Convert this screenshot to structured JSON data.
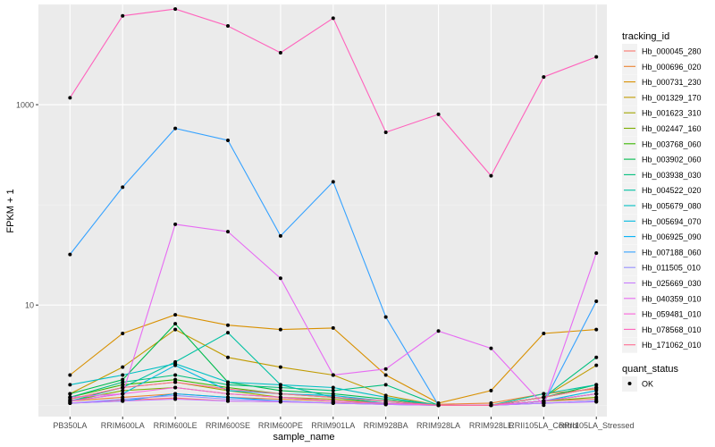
{
  "chart_data": {
    "type": "line",
    "title": "",
    "xlabel": "sample_name",
    "ylabel": "FPKM + 1",
    "y_scale": "log10",
    "ylim": [
      0.77,
      10000
    ],
    "y_ticks": [
      10,
      1000
    ],
    "y_tick_labels": [
      "10",
      "1000"
    ],
    "categories": [
      "PB350LA",
      "RRIM600LA",
      "RRIM600LE",
      "RRIM600SE",
      "RRIM600PE",
      "RRIM901LA",
      "RRIM928BA",
      "RRIM928LA",
      "RRIM928LE",
      "RRII105LA_Control",
      "RRII105LA_Stressed"
    ],
    "legend": {
      "title": "tracking_id",
      "position": "right",
      "entries": [
        "Hb_000045_280",
        "Hb_000696_020",
        "Hb_000731_230",
        "Hb_001329_170",
        "Hb_001623_310",
        "Hb_002447_160",
        "Hb_003768_060",
        "Hb_003902_060",
        "Hb_003938_030",
        "Hb_004522_020",
        "Hb_005679_080",
        "Hb_005694_070",
        "Hb_006925_090",
        "Hb_007188_060",
        "Hb_011505_010",
        "Hb_025669_030",
        "Hb_040359_010",
        "Hb_059481_010",
        "Hb_078568_010",
        "Hb_171062_010"
      ]
    },
    "point_legend": {
      "title": "quant_status",
      "entries": [
        "OK"
      ]
    },
    "series": [
      {
        "name": "Hb_000045_280",
        "color": "#F8766D",
        "values": [
          1.05,
          1.12,
          1.18,
          1.1,
          1.08,
          1.06,
          1.03,
          1.0,
          1.0,
          1.1,
          1.15
        ]
      },
      {
        "name": "Hb_000696_020",
        "color": "#EA8331",
        "values": [
          1.1,
          1.2,
          1.3,
          1.2,
          1.15,
          1.1,
          1.05,
          1.02,
          1.05,
          1.3,
          1.45
        ]
      },
      {
        "name": "Hb_000731_230",
        "color": "#D89000",
        "values": [
          2.0,
          5.2,
          8.0,
          6.3,
          5.7,
          5.9,
          2.0,
          1.05,
          1.4,
          5.2,
          5.7
        ]
      },
      {
        "name": "Hb_001329_170",
        "color": "#C09B00",
        "values": [
          1.3,
          2.4,
          5.7,
          3.0,
          2.4,
          2.0,
          1.25,
          1.0,
          1.0,
          1.2,
          2.5
        ]
      },
      {
        "name": "Hb_001623_310",
        "color": "#A3A500",
        "values": [
          1.15,
          1.5,
          1.7,
          1.4,
          1.2,
          1.15,
          1.05,
          1.0,
          1.0,
          1.1,
          1.3
        ]
      },
      {
        "name": "Hb_002447_160",
        "color": "#7CAE00",
        "values": [
          1.1,
          1.4,
          1.5,
          1.3,
          1.2,
          1.1,
          1.05,
          1.0,
          1.0,
          1.1,
          1.2
        ]
      },
      {
        "name": "Hb_003768_060",
        "color": "#39B600",
        "values": [
          1.2,
          1.6,
          1.8,
          1.5,
          1.3,
          1.2,
          1.1,
          1.0,
          1.0,
          1.2,
          1.5
        ]
      },
      {
        "name": "Hb_003902_060",
        "color": "#00BB4E",
        "values": [
          1.3,
          1.8,
          6.5,
          1.7,
          1.4,
          1.3,
          1.15,
          1.0,
          1.0,
          1.2,
          1.6
        ]
      },
      {
        "name": "Hb_003938_030",
        "color": "#00BF7D",
        "values": [
          1.2,
          1.7,
          2.0,
          1.6,
          1.5,
          1.4,
          1.6,
          1.0,
          1.0,
          1.2,
          3.0
        ]
      },
      {
        "name": "Hb_004522_020",
        "color": "#00C1A3",
        "values": [
          1.1,
          1.5,
          2.7,
          5.3,
          1.6,
          1.2,
          1.05,
          1.0,
          1.0,
          1.3,
          1.6
        ]
      },
      {
        "name": "Hb_005679_080",
        "color": "#00BFC4",
        "values": [
          1.6,
          2.0,
          2.6,
          1.7,
          1.6,
          1.5,
          1.2,
          1.0,
          1.0,
          1.1,
          1.3
        ]
      },
      {
        "name": "Hb_005694_070",
        "color": "#00BAE0",
        "values": [
          1.1,
          1.3,
          2.5,
          1.4,
          1.3,
          1.25,
          1.1,
          1.0,
          1.0,
          1.1,
          1.4
        ]
      },
      {
        "name": "Hb_006925_090",
        "color": "#00B0F6",
        "values": [
          1.05,
          1.1,
          1.3,
          1.2,
          1.1,
          1.05,
          1.02,
          1.0,
          1.0,
          1.05,
          1.1
        ]
      },
      {
        "name": "Hb_007188_060",
        "color": "#35A2FF",
        "values": [
          32,
          150,
          580,
          440,
          49,
          170,
          7.6,
          1.0,
          1.0,
          1.05,
          10.9
        ]
      },
      {
        "name": "Hb_011505_010",
        "color": "#9590FF",
        "values": [
          1.05,
          1.15,
          1.25,
          1.15,
          1.1,
          1.05,
          1.02,
          1.0,
          1.0,
          1.05,
          1.1
        ]
      },
      {
        "name": "Hb_025669_030",
        "color": "#C77CFF",
        "values": [
          1.05,
          1.1,
          1.15,
          1.1,
          1.08,
          1.05,
          1.02,
          1.0,
          1.0,
          1.05,
          1.08
        ]
      },
      {
        "name": "Hb_040359_010",
        "color": "#E76BF3",
        "values": [
          1.2,
          1.3,
          64,
          54,
          18.5,
          2.0,
          2.3,
          5.5,
          3.7,
          1.0,
          33
        ]
      },
      {
        "name": "Hb_059481_010",
        "color": "#FA62DB",
        "values": [
          1.1,
          1.3,
          1.5,
          1.3,
          1.2,
          1.1,
          1.05,
          1.0,
          1.0,
          1.1,
          1.3
        ]
      },
      {
        "name": "Hb_078568_010",
        "color": "#FF62BC",
        "values": [
          1170,
          7700,
          9000,
          6100,
          3300,
          7300,
          530,
          800,
          195,
          1890,
          3000
        ]
      },
      {
        "name": "Hb_171062_010",
        "color": "#FF6C91",
        "values": [
          1.15,
          1.5,
          1.7,
          1.45,
          1.3,
          1.2,
          1.1,
          1.0,
          1.0,
          1.2,
          1.5
        ]
      }
    ]
  }
}
